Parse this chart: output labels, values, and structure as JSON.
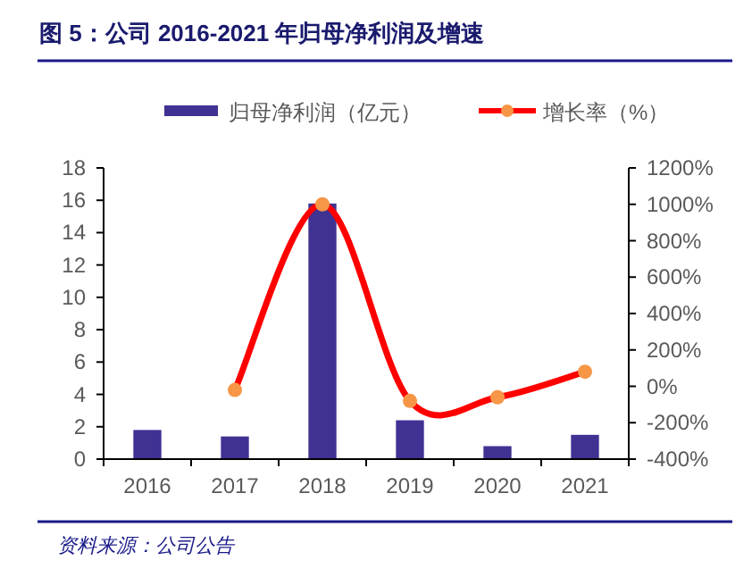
{
  "chart_data": {
    "type": "bar",
    "title": "图 5：公司 2016-2021 年归母净利润及增速",
    "categories": [
      "2016",
      "2017",
      "2018",
      "2019",
      "2020",
      "2021"
    ],
    "series": [
      {
        "name": "归母净利润（亿元）",
        "color": "#3f3293",
        "values": [
          1.8,
          1.4,
          15.8,
          2.4,
          0.8,
          1.5
        ]
      },
      {
        "name": "增长率（%）",
        "type": "line",
        "axis": "y2",
        "color": "#ff0000",
        "marker": "circle",
        "values": [
          null,
          -20,
          1000,
          -80,
          -60,
          80
        ]
      }
    ],
    "ylim": [
      0,
      18
    ],
    "yticks": [
      0,
      2,
      4,
      6,
      8,
      10,
      12,
      14,
      16,
      18
    ],
    "y2lim": [
      -400,
      1200
    ],
    "y2ticks": [
      {
        "value": -400,
        "label": "-400%"
      },
      {
        "value": -200,
        "label": "-200%"
      },
      {
        "value": 0,
        "label": "0%"
      },
      {
        "value": 200,
        "label": "200%"
      },
      {
        "value": 400,
        "label": "400%"
      },
      {
        "value": 600,
        "label": "600%"
      },
      {
        "value": 800,
        "label": "800%"
      },
      {
        "value": 1000,
        "label": "1000%"
      },
      {
        "value": 1200,
        "label": "1200%"
      }
    ],
    "legend": "top",
    "grid": false,
    "annotations": [
      "资料来源：公司公告"
    ]
  }
}
